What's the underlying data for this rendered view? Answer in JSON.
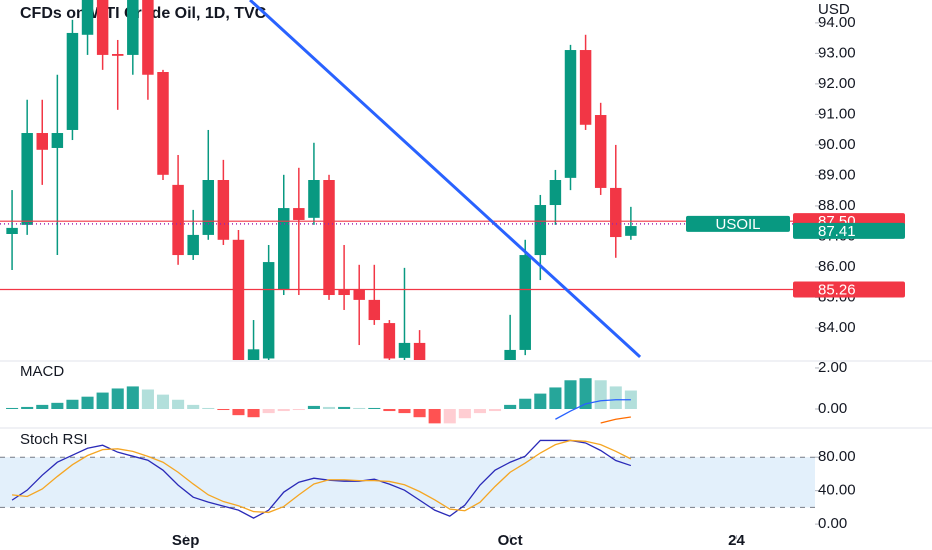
{
  "chart_data": [
    {
      "type": "candlestick",
      "title": "CFDs on WTI Crude Oil, 1D, TVC",
      "y_axis_label": "USD",
      "x": [
        0,
        1,
        2,
        3,
        4,
        5,
        6,
        7,
        8,
        9,
        10,
        11,
        12,
        13,
        14,
        15,
        16,
        17,
        18,
        19,
        20,
        21,
        22,
        23,
        24,
        25,
        26,
        27,
        33,
        34,
        35,
        36,
        37,
        38,
        39,
        40,
        41
      ],
      "open": [
        87.08,
        87.38,
        90.39,
        89.9,
        90.49,
        93.61,
        95.0,
        92.98,
        92.95,
        95.0,
        92.39,
        88.69,
        86.39,
        87.05,
        88.85,
        86.89,
        82.9,
        83.0,
        85.25,
        87.93,
        87.61,
        88.85,
        85.25,
        85.25,
        84.92,
        84.16,
        83.02,
        83.51,
        82.9,
        83.28,
        86.39,
        88.03,
        88.92,
        93.11,
        90.98,
        88.59,
        87.02
      ],
      "high": [
        88.52,
        91.48,
        91.48,
        92.3,
        94.1,
        95.3,
        95.3,
        93.44,
        95.2,
        95.3,
        92.46,
        89.67,
        87.87,
        90.49,
        89.51,
        87.21,
        84.26,
        86.72,
        89.02,
        89.25,
        90.07,
        89.02,
        86.72,
        86.07,
        86.07,
        84.26,
        85.97,
        83.93,
        84.43,
        86.89,
        88.36,
        89.18,
        93.28,
        93.61,
        91.38,
        90.0,
        87.97
      ],
      "low": [
        85.9,
        87.05,
        88.69,
        86.39,
        90.16,
        92.95,
        92.46,
        91.15,
        92.3,
        91.48,
        88.85,
        86.07,
        86.23,
        86.89,
        86.72,
        82.3,
        82.5,
        82.6,
        85.08,
        85.08,
        87.38,
        84.92,
        84.59,
        83.44,
        84.1,
        82.6,
        82.8,
        82.6,
        82.6,
        83.11,
        85.57,
        87.38,
        88.52,
        90.49,
        88.36,
        86.3,
        86.89
      ],
      "close": [
        87.28,
        90.39,
        89.84,
        90.39,
        93.67,
        95.0,
        92.95,
        92.92,
        94.9,
        92.3,
        89.02,
        86.39,
        87.05,
        88.85,
        86.89,
        82.6,
        83.3,
        86.16,
        87.93,
        87.54,
        88.85,
        85.08,
        85.08,
        84.92,
        84.26,
        83.0,
        83.51,
        82.9,
        83.28,
        86.39,
        88.03,
        88.85,
        93.11,
        90.66,
        88.59,
        86.98,
        87.34
      ],
      "up_color": "#089981",
      "down_color": "#f23645",
      "xlim": [
        -0.8,
        53.2
      ],
      "ylim": [
        82.95,
        94.75
      ],
      "yticks": [
        {
          "value": 84,
          "label": "84.00"
        },
        {
          "value": 85,
          "label": "85.00"
        },
        {
          "value": 86,
          "label": "86.00"
        },
        {
          "value": 87,
          "label": "87.00"
        },
        {
          "value": 88,
          "label": "88.00"
        },
        {
          "value": 89,
          "label": "89.00"
        },
        {
          "value": 90,
          "label": "90.00"
        },
        {
          "value": 91,
          "label": "91.00"
        },
        {
          "value": 92,
          "label": "92.00"
        },
        {
          "value": 93,
          "label": "93.00"
        },
        {
          "value": 94,
          "label": "94.00"
        }
      ],
      "levels": [
        {
          "value": 87.5,
          "label": "87.50",
          "color": "#f23645"
        },
        {
          "value": 85.26,
          "label": "85.26",
          "color": "#f23645"
        }
      ],
      "last_price": {
        "name": "USOIL",
        "value": 87.41,
        "label": "87.41",
        "color": "#089981"
      },
      "trendline": {
        "x": [
          15.77,
          41.61
        ],
        "y": [
          94.75,
          83.05
        ],
        "color": "#2962ff"
      }
    },
    {
      "type": "bar",
      "title": "MACD",
      "x": [
        0,
        1,
        2,
        3,
        4,
        5,
        6,
        7,
        8,
        9,
        10,
        11,
        12,
        13,
        14,
        15,
        16,
        17,
        18,
        19,
        20,
        21,
        22,
        23,
        24,
        25,
        26,
        27,
        28,
        29,
        30,
        31,
        32,
        33,
        34,
        35,
        36,
        37,
        38,
        39,
        40,
        41
      ],
      "values": [
        0.05,
        0.1,
        0.2,
        0.3,
        0.45,
        0.6,
        0.8,
        1.0,
        1.1,
        0.95,
        0.7,
        0.45,
        0.2,
        0.05,
        -0.05,
        -0.3,
        -0.4,
        -0.2,
        -0.1,
        -0.05,
        0.15,
        0.1,
        0.1,
        0.05,
        0.05,
        -0.1,
        -0.2,
        -0.4,
        -0.7,
        -0.7,
        -0.45,
        -0.2,
        -0.1,
        0.2,
        0.5,
        0.75,
        1.05,
        1.4,
        1.5,
        1.4,
        1.1,
        0.9
      ],
      "colors": [
        "#26a69a",
        "#b2dfdb",
        "#ffcdd2",
        "#ff5252"
      ],
      "series": [
        {
          "x": [
            36,
            37,
            38,
            39,
            40,
            41
          ],
          "values": [
            -0.5,
            -0.1,
            0.25,
            0.4,
            0.45,
            0.45
          ],
          "color": "#2962ff"
        },
        {
          "x": [
            39,
            40,
            41
          ],
          "values": [
            -0.68,
            -0.5,
            -0.39
          ],
          "color": "#ff6d00"
        }
      ],
      "xlim": [
        -0.8,
        53.2
      ],
      "ylim": [
        -0.78,
        2.29
      ],
      "yticks": [
        {
          "value": 0,
          "label": "0.00"
        },
        {
          "value": 2,
          "label": "2.00"
        }
      ]
    },
    {
      "type": "line",
      "title": "Stoch RSI",
      "x": [
        0,
        1,
        2,
        3,
        4,
        5,
        6,
        7,
        8,
        9,
        10,
        11,
        12,
        13,
        14,
        15,
        16,
        17,
        18,
        19,
        20,
        21,
        22,
        23,
        24,
        25,
        26,
        27,
        28,
        29,
        30,
        31,
        32,
        33,
        34,
        35,
        36,
        37,
        38,
        39,
        40,
        41
      ],
      "series": [
        {
          "values": [
            28.7,
            40.6,
            58.5,
            74.0,
            82.4,
            90.7,
            94.3,
            86.0,
            81.2,
            76.4,
            64.5,
            46.6,
            32.2,
            26.3,
            21.5,
            16.7,
            7.2,
            16.7,
            38.2,
            50.1,
            54.9,
            52.5,
            51.3,
            51.3,
            53.7,
            47.8,
            40.6,
            28.7,
            16.7,
            9.6,
            22.7,
            46.6,
            64.5,
            74.0,
            81.2,
            100,
            100,
            100,
            97,
            88,
            76,
            70
          ],
          "color": "#2a2ab8"
        },
        {
          "values": [
            35,
            33,
            42,
            57,
            71,
            82,
            89,
            90,
            87,
            81,
            74,
            62,
            48,
            35,
            27,
            22,
            15,
            14,
            21,
            35,
            48,
            53,
            53,
            52,
            52,
            51,
            47,
            39,
            29,
            18,
            16,
            26,
            45,
            62,
            73,
            85,
            95,
            100,
            99,
            95,
            87,
            78
          ],
          "color": "#f5a623"
        }
      ],
      "band": [
        20,
        80
      ],
      "band_color": "#e3f0fb",
      "xlim": [
        -0.8,
        53.2
      ],
      "ylim": [
        -13,
        112.5
      ],
      "yticks": [
        {
          "value": 0,
          "label": "0.00"
        },
        {
          "value": 40,
          "label": "40.00"
        },
        {
          "value": 80,
          "label": "80.00"
        }
      ],
      "xticks": [
        {
          "value": 11.5,
          "label": "Sep"
        },
        {
          "value": 33,
          "label": "Oct"
        },
        {
          "value": 48,
          "label": "24"
        }
      ]
    }
  ]
}
